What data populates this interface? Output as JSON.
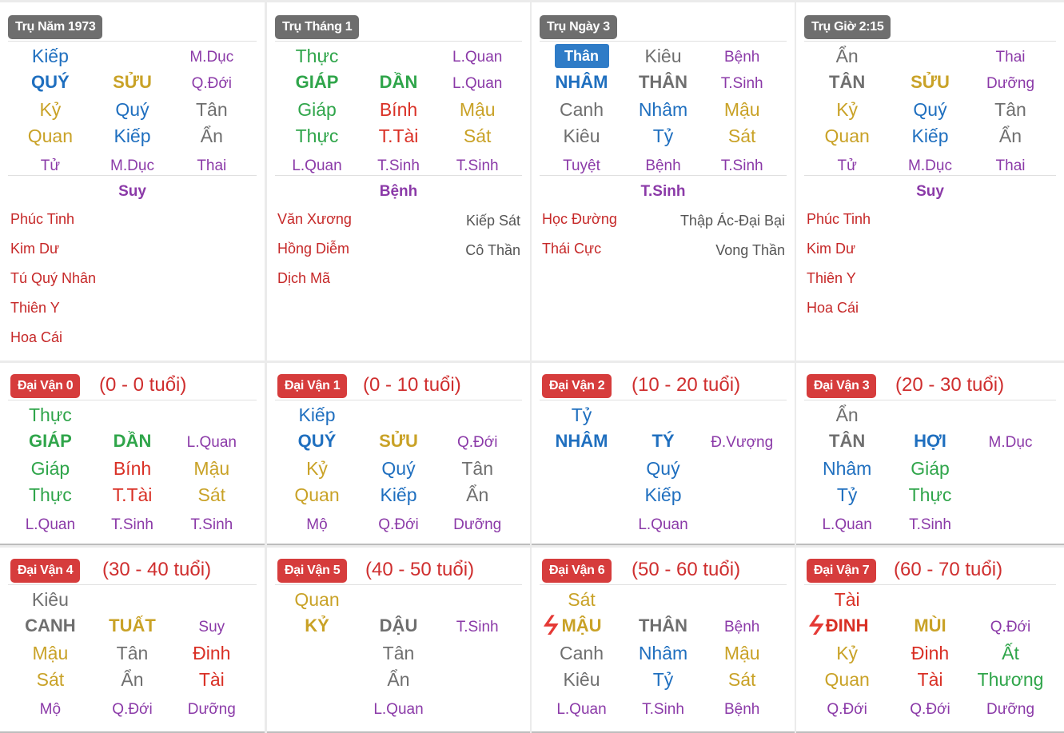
{
  "colors": {
    "moc": "#2fa54a",
    "hoa": "#d93025",
    "tho": "#c9a227",
    "kim": "#6f6f6f",
    "thuy": "#1f6fbf",
    "truongsinh": "#8b3aa8",
    "sao_tot": "#c62828",
    "sao_xau": "#555555",
    "badge_pillar": "#6e6e6e",
    "badge_luck": "#d63c3c",
    "pill": "#2f7cc7"
  },
  "icons": {
    "xung": "lightning-icon"
  },
  "pillars": [
    {
      "title": "Trụ Năm 1973",
      "rows": [
        [
          {
            "t": "Kiếp",
            "c": "thuy"
          },
          null,
          {
            "t": "M.Dục",
            "c": "truongsinh"
          }
        ],
        [
          {
            "t": "QUÝ",
            "c": "thuy",
            "b": true
          },
          {
            "t": "SỬU",
            "c": "tho",
            "b": true
          },
          {
            "t": "Q.Đới",
            "c": "truongsinh"
          }
        ],
        [
          {
            "t": "Kỷ",
            "c": "tho"
          },
          {
            "t": "Quý",
            "c": "thuy"
          },
          {
            "t": "Tân",
            "c": "kim"
          }
        ],
        [
          {
            "t": "Quan",
            "c": "tho"
          },
          {
            "t": "Kiếp",
            "c": "thuy"
          },
          {
            "t": "Ẩn",
            "c": "kim"
          }
        ],
        [
          {
            "t": "Tử",
            "c": "truongsinh"
          },
          {
            "t": "M.Dục",
            "c": "truongsinh"
          },
          {
            "t": "Thai",
            "c": "truongsinh"
          }
        ]
      ],
      "summary": "Suy",
      "stars_left": [
        "Phúc Tinh",
        "Kim Dư",
        "Tú Quý Nhân",
        "Thiên Y",
        "Hoa Cái"
      ],
      "stars_right": []
    },
    {
      "title": "Trụ Tháng 1",
      "rows": [
        [
          {
            "t": "Thực",
            "c": "moc"
          },
          null,
          {
            "t": "L.Quan",
            "c": "truongsinh"
          }
        ],
        [
          {
            "t": "GIÁP",
            "c": "moc",
            "b": true
          },
          {
            "t": "DẦN",
            "c": "moc",
            "b": true
          },
          {
            "t": "L.Quan",
            "c": "truongsinh"
          }
        ],
        [
          {
            "t": "Giáp",
            "c": "moc"
          },
          {
            "t": "Bính",
            "c": "hoa"
          },
          {
            "t": "Mậu",
            "c": "tho"
          }
        ],
        [
          {
            "t": "Thực",
            "c": "moc"
          },
          {
            "t": "T.Tài",
            "c": "hoa"
          },
          {
            "t": "Sát",
            "c": "tho"
          }
        ],
        [
          {
            "t": "L.Quan",
            "c": "truongsinh"
          },
          {
            "t": "T.Sinh",
            "c": "truongsinh"
          },
          {
            "t": "T.Sinh",
            "c": "truongsinh"
          }
        ]
      ],
      "summary": "Bệnh",
      "stars_left": [
        "Văn Xương",
        "Hồng Diễm",
        "Dịch Mã"
      ],
      "stars_right": [
        "Kiếp Sát",
        "Cô Thần"
      ]
    },
    {
      "title": "Trụ Ngày 3",
      "rows": [
        [
          {
            "t": "Thân",
            "c": "pill"
          },
          {
            "t": "Kiêu",
            "c": "kim"
          },
          {
            "t": "Bệnh",
            "c": "truongsinh"
          }
        ],
        [
          {
            "t": "NHÂM",
            "c": "thuy",
            "b": true
          },
          {
            "t": "THÂN",
            "c": "kim",
            "b": true
          },
          {
            "t": "T.Sinh",
            "c": "truongsinh"
          }
        ],
        [
          {
            "t": "Canh",
            "c": "kim"
          },
          {
            "t": "Nhâm",
            "c": "thuy"
          },
          {
            "t": "Mậu",
            "c": "tho"
          }
        ],
        [
          {
            "t": "Kiêu",
            "c": "kim"
          },
          {
            "t": "Tỷ",
            "c": "thuy"
          },
          {
            "t": "Sát",
            "c": "tho"
          }
        ],
        [
          {
            "t": "Tuyệt",
            "c": "truongsinh"
          },
          {
            "t": "Bệnh",
            "c": "truongsinh"
          },
          {
            "t": "T.Sinh",
            "c": "truongsinh"
          }
        ]
      ],
      "summary": "T.Sinh",
      "stars_left": [
        "Học Đường",
        "Thái Cực"
      ],
      "stars_right": [
        "Thập Ác-Đại Bại",
        "Vong Thần"
      ]
    },
    {
      "title": "Trụ Giờ 2:15",
      "rows": [
        [
          {
            "t": "Ẩn",
            "c": "kim"
          },
          null,
          {
            "t": "Thai",
            "c": "truongsinh"
          }
        ],
        [
          {
            "t": "TÂN",
            "c": "kim",
            "b": true
          },
          {
            "t": "SỬU",
            "c": "tho",
            "b": true
          },
          {
            "t": "Dưỡng",
            "c": "truongsinh"
          }
        ],
        [
          {
            "t": "Kỷ",
            "c": "tho"
          },
          {
            "t": "Quý",
            "c": "thuy"
          },
          {
            "t": "Tân",
            "c": "kim"
          }
        ],
        [
          {
            "t": "Quan",
            "c": "tho"
          },
          {
            "t": "Kiếp",
            "c": "thuy"
          },
          {
            "t": "Ẩn",
            "c": "kim"
          }
        ],
        [
          {
            "t": "Tử",
            "c": "truongsinh"
          },
          {
            "t": "M.Dục",
            "c": "truongsinh"
          },
          {
            "t": "Thai",
            "c": "truongsinh"
          }
        ]
      ],
      "summary": "Suy",
      "stars_left": [
        "Phúc Tinh",
        "Kim Dư",
        "Thiên Y",
        "Hoa Cái"
      ],
      "stars_right": []
    }
  ],
  "dai_van": [
    {
      "title": "Đại Vận 0",
      "age": "(0 - 0 tuổi)",
      "rows": [
        [
          {
            "t": "Thực",
            "c": "moc"
          },
          null,
          null
        ],
        [
          {
            "t": "GIÁP",
            "c": "moc",
            "b": true
          },
          {
            "t": "DẦN",
            "c": "moc",
            "b": true
          },
          {
            "t": "L.Quan",
            "c": "truongsinh"
          }
        ],
        [
          {
            "t": "Giáp",
            "c": "moc"
          },
          {
            "t": "Bính",
            "c": "hoa"
          },
          {
            "t": "Mậu",
            "c": "tho"
          }
        ],
        [
          {
            "t": "Thực",
            "c": "moc"
          },
          {
            "t": "T.Tài",
            "c": "hoa"
          },
          {
            "t": "Sát",
            "c": "tho"
          }
        ],
        [
          {
            "t": "L.Quan",
            "c": "truongsinh"
          },
          {
            "t": "T.Sinh",
            "c": "truongsinh"
          },
          {
            "t": "T.Sinh",
            "c": "truongsinh"
          }
        ]
      ]
    },
    {
      "title": "Đại Vận 1",
      "age": "(0 - 10 tuổi)",
      "rows": [
        [
          {
            "t": "Kiếp",
            "c": "thuy"
          },
          null,
          null
        ],
        [
          {
            "t": "QUÝ",
            "c": "thuy",
            "b": true
          },
          {
            "t": "SỬU",
            "c": "tho",
            "b": true
          },
          {
            "t": "Q.Đới",
            "c": "truongsinh"
          }
        ],
        [
          {
            "t": "Kỷ",
            "c": "tho"
          },
          {
            "t": "Quý",
            "c": "thuy"
          },
          {
            "t": "Tân",
            "c": "kim"
          }
        ],
        [
          {
            "t": "Quan",
            "c": "tho"
          },
          {
            "t": "Kiếp",
            "c": "thuy"
          },
          {
            "t": "Ẩn",
            "c": "kim"
          }
        ],
        [
          {
            "t": "Mộ",
            "c": "truongsinh"
          },
          {
            "t": "Q.Đới",
            "c": "truongsinh"
          },
          {
            "t": "Dưỡng",
            "c": "truongsinh"
          }
        ]
      ]
    },
    {
      "title": "Đại Vận 2",
      "age": "(10 - 20 tuổi)",
      "rows": [
        [
          {
            "t": "Tỷ",
            "c": "thuy"
          },
          null,
          null
        ],
        [
          {
            "t": "NHÂM",
            "c": "thuy",
            "b": true
          },
          {
            "t": "TÝ",
            "c": "thuy",
            "b": true
          },
          {
            "t": "Đ.Vượng",
            "c": "truongsinh"
          }
        ],
        [
          null,
          {
            "t": "Quý",
            "c": "thuy"
          },
          null
        ],
        [
          null,
          {
            "t": "Kiếp",
            "c": "thuy"
          },
          null
        ],
        [
          null,
          {
            "t": "L.Quan",
            "c": "truongsinh"
          },
          null
        ]
      ]
    },
    {
      "title": "Đại Vận 3",
      "age": "(20 - 30 tuổi)",
      "rows": [
        [
          {
            "t": "Ẩn",
            "c": "kim"
          },
          null,
          null
        ],
        [
          {
            "t": "TÂN",
            "c": "kim",
            "b": true
          },
          {
            "t": "HỢI",
            "c": "thuy",
            "b": true
          },
          {
            "t": "M.Dục",
            "c": "truongsinh"
          }
        ],
        [
          {
            "t": "Nhâm",
            "c": "thuy"
          },
          {
            "t": "Giáp",
            "c": "moc"
          },
          null
        ],
        [
          {
            "t": "Tỷ",
            "c": "thuy"
          },
          {
            "t": "Thực",
            "c": "moc"
          },
          null
        ],
        [
          {
            "t": "L.Quan",
            "c": "truongsinh"
          },
          {
            "t": "T.Sinh",
            "c": "truongsinh"
          },
          null
        ]
      ]
    },
    {
      "title": "Đại Vận 4",
      "age": "(30 - 40 tuổi)",
      "rows": [
        [
          {
            "t": "Kiêu",
            "c": "kim"
          },
          null,
          null
        ],
        [
          {
            "t": "CANH",
            "c": "kim",
            "b": true
          },
          {
            "t": "TUẤT",
            "c": "tho",
            "b": true
          },
          {
            "t": "Suy",
            "c": "truongsinh"
          }
        ],
        [
          {
            "t": "Mậu",
            "c": "tho"
          },
          {
            "t": "Tân",
            "c": "kim"
          },
          {
            "t": "Đinh",
            "c": "hoa"
          }
        ],
        [
          {
            "t": "Sát",
            "c": "tho"
          },
          {
            "t": "Ẩn",
            "c": "kim"
          },
          {
            "t": "Tài",
            "c": "hoa"
          }
        ],
        [
          {
            "t": "Mộ",
            "c": "truongsinh"
          },
          {
            "t": "Q.Đới",
            "c": "truongsinh"
          },
          {
            "t": "Dưỡng",
            "c": "truongsinh"
          }
        ]
      ]
    },
    {
      "title": "Đại Vận 5",
      "age": "(40 - 50 tuổi)",
      "rows": [
        [
          {
            "t": "Quan",
            "c": "tho"
          },
          null,
          null
        ],
        [
          {
            "t": "KỶ",
            "c": "tho",
            "b": true
          },
          {
            "t": "DẬU",
            "c": "kim",
            "b": true
          },
          {
            "t": "T.Sinh",
            "c": "truongsinh"
          }
        ],
        [
          null,
          {
            "t": "Tân",
            "c": "kim"
          },
          null
        ],
        [
          null,
          {
            "t": "Ẩn",
            "c": "kim"
          },
          null
        ],
        [
          null,
          {
            "t": "L.Quan",
            "c": "truongsinh"
          },
          null
        ]
      ]
    },
    {
      "title": "Đại Vận 6",
      "age": "(50 - 60 tuổi)",
      "rows": [
        [
          {
            "t": "Sát",
            "c": "tho"
          },
          null,
          null
        ],
        [
          {
            "t": "MẬU",
            "c": "tho",
            "b": true,
            "flash": true
          },
          {
            "t": "THÂN",
            "c": "kim",
            "b": true
          },
          {
            "t": "Bệnh",
            "c": "truongsinh"
          }
        ],
        [
          {
            "t": "Canh",
            "c": "kim"
          },
          {
            "t": "Nhâm",
            "c": "thuy"
          },
          {
            "t": "Mậu",
            "c": "tho"
          }
        ],
        [
          {
            "t": "Kiêu",
            "c": "kim"
          },
          {
            "t": "Tỷ",
            "c": "thuy"
          },
          {
            "t": "Sát",
            "c": "tho"
          }
        ],
        [
          {
            "t": "L.Quan",
            "c": "truongsinh"
          },
          {
            "t": "T.Sinh",
            "c": "truongsinh"
          },
          {
            "t": "Bệnh",
            "c": "truongsinh"
          }
        ]
      ]
    },
    {
      "title": "Đại Vận 7",
      "age": "(60 - 70 tuổi)",
      "rows": [
        [
          {
            "t": "Tài",
            "c": "hoa"
          },
          null,
          null
        ],
        [
          {
            "t": "ĐINH",
            "c": "hoa",
            "b": true,
            "flash": true
          },
          {
            "t": "MÙI",
            "c": "tho",
            "b": true
          },
          {
            "t": "Q.Đới",
            "c": "truongsinh"
          }
        ],
        [
          {
            "t": "Kỷ",
            "c": "tho"
          },
          {
            "t": "Đinh",
            "c": "hoa"
          },
          {
            "t": "Ất",
            "c": "moc"
          }
        ],
        [
          {
            "t": "Quan",
            "c": "tho"
          },
          {
            "t": "Tài",
            "c": "hoa"
          },
          {
            "t": "Thương",
            "c": "moc"
          }
        ],
        [
          {
            "t": "Q.Đới",
            "c": "truongsinh"
          },
          {
            "t": "Q.Đới",
            "c": "truongsinh"
          },
          {
            "t": "Dưỡng",
            "c": "truongsinh"
          }
        ]
      ]
    }
  ]
}
